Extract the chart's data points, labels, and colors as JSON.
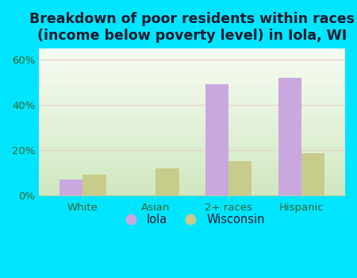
{
  "title": "Breakdown of poor residents within races\n(income below poverty level) in Iola, WI",
  "categories": [
    "White",
    "Asian",
    "2+ races",
    "Hispanic"
  ],
  "iola_values": [
    7.0,
    0.0,
    49.0,
    52.0
  ],
  "wisconsin_values": [
    9.0,
    12.0,
    15.0,
    18.5
  ],
  "iola_color": "#c9a8e0",
  "wisconsin_color": "#c8cc8a",
  "background_color": "#00e5ff",
  "plot_bg_top": "#f5faf0",
  "plot_bg_bottom": "#d8edcc",
  "ylim": [
    0,
    65
  ],
  "yticks": [
    0,
    20,
    40,
    60
  ],
  "ytick_labels": [
    "0%",
    "20%",
    "40%",
    "60%"
  ],
  "bar_width": 0.32,
  "title_fontsize": 12.5,
  "tick_fontsize": 9.5,
  "legend_fontsize": 10.5,
  "grid_color": "#d0e8c0"
}
